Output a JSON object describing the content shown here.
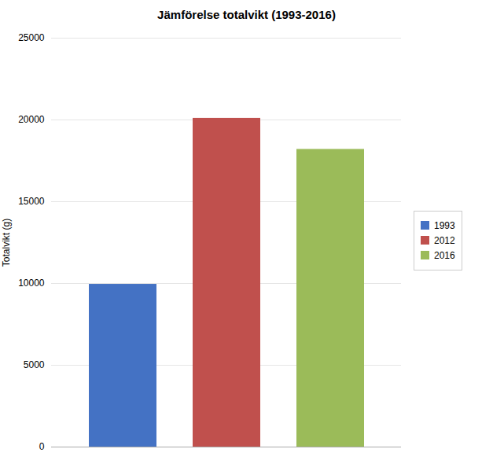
{
  "chart_data": {
    "type": "bar",
    "title": "Jämförelse totalvikt (1993-2016)",
    "categories": [
      "1993",
      "2012",
      "2016"
    ],
    "values": [
      9950,
      20100,
      18200
    ],
    "colors": [
      "#4472C4",
      "#C0504D",
      "#9BBB59"
    ],
    "ylabel": "Totalvikt (g)",
    "ylim": [
      0,
      25000
    ],
    "yticks": [
      0,
      5000,
      10000,
      15000,
      20000,
      25000
    ],
    "grid": true,
    "legend": "right",
    "tick_labels": "y"
  }
}
